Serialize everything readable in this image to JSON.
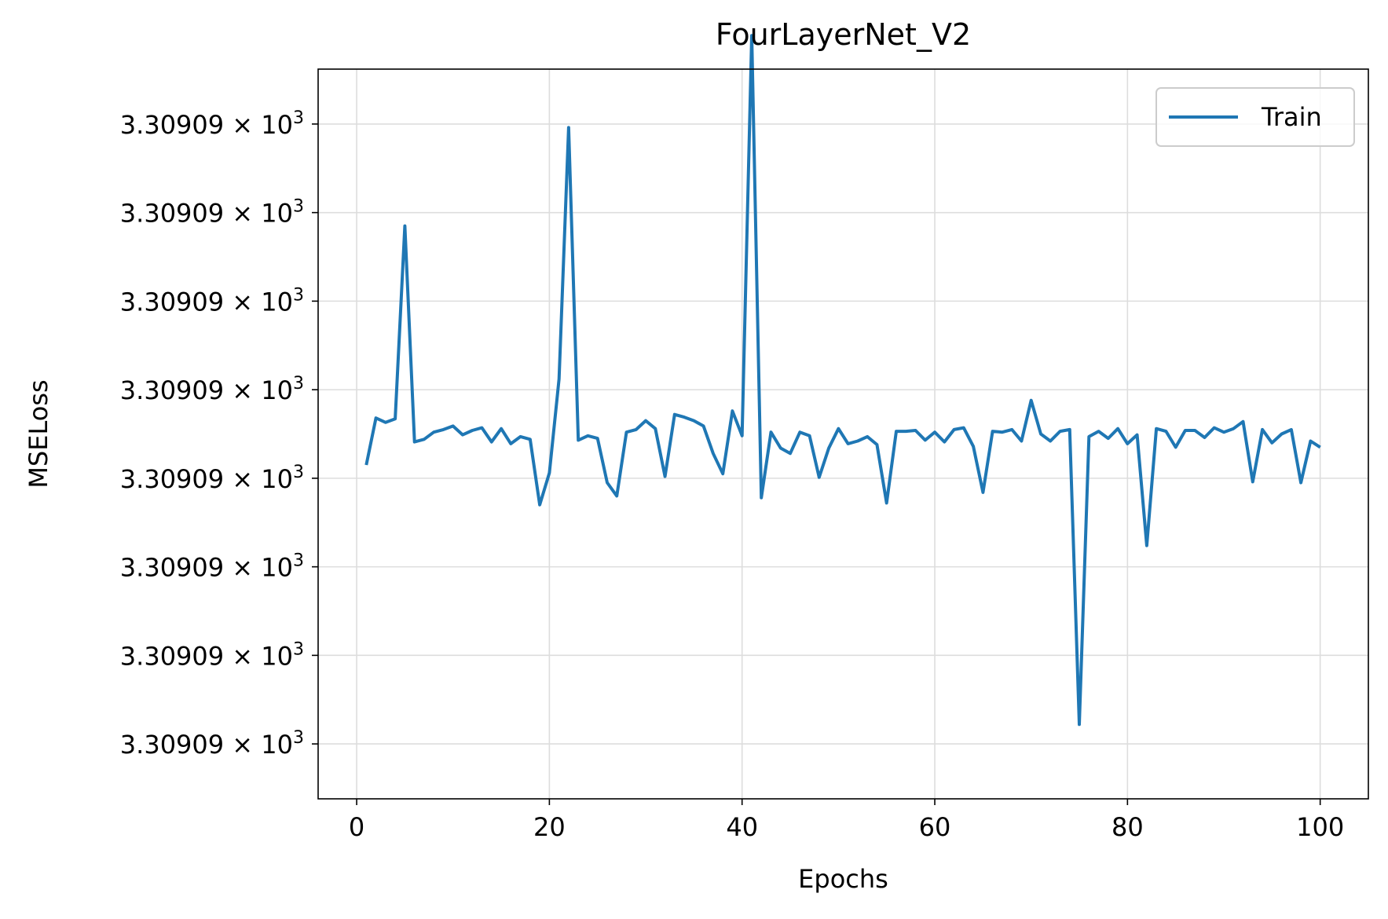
{
  "chart_data": {
    "type": "line",
    "title": "FourLayerNet_V2",
    "xlabel": "Epochs",
    "ylabel": "MSELoss",
    "xlim": [
      -4,
      105
    ],
    "ylim": [
      -0.62,
      7.62
    ],
    "x_ticks": [
      0,
      20,
      40,
      60,
      80,
      100
    ],
    "y_ticks": [
      0,
      1,
      2,
      3,
      4,
      5,
      6,
      7
    ],
    "y_tick_mantissa": "3.30909",
    "y_tick_multiplier": "× 10",
    "y_tick_exponent": "3",
    "grid": true,
    "legend_position": "top-right",
    "colors": {
      "series": "#1f77b4",
      "grid": "#dddddd",
      "axes": "#000000",
      "legend_border": "#cccccc"
    },
    "series": [
      {
        "name": "Train",
        "x": [
          1,
          2,
          3,
          4,
          5,
          6,
          7,
          8,
          9,
          10,
          11,
          12,
          13,
          14,
          15,
          16,
          17,
          18,
          19,
          20,
          21,
          22,
          23,
          24,
          25,
          26,
          27,
          28,
          29,
          30,
          31,
          32,
          33,
          34,
          35,
          36,
          37,
          38,
          39,
          40,
          41,
          42,
          43,
          44,
          45,
          46,
          47,
          48,
          49,
          50,
          51,
          52,
          53,
          54,
          55,
          56,
          57,
          58,
          59,
          60,
          61,
          62,
          63,
          64,
          65,
          66,
          67,
          68,
          69,
          70,
          71,
          72,
          73,
          74,
          75,
          76,
          77,
          78,
          79,
          80,
          81,
          82,
          83,
          84,
          85,
          86,
          87,
          88,
          89,
          90,
          91,
          92,
          93,
          94,
          95,
          96,
          97,
          98,
          99,
          100
        ],
        "y": [
          3.15,
          3.68,
          3.63,
          3.67,
          5.85,
          3.41,
          3.44,
          3.52,
          3.55,
          3.59,
          3.49,
          3.54,
          3.57,
          3.41,
          3.56,
          3.39,
          3.47,
          3.44,
          2.7,
          3.06,
          4.12,
          6.96,
          3.43,
          3.48,
          3.45,
          2.95,
          2.8,
          3.52,
          3.55,
          3.65,
          3.56,
          3.02,
          3.72,
          3.69,
          3.65,
          3.59,
          3.28,
          3.05,
          3.76,
          3.48,
          8.0,
          2.78,
          3.52,
          3.34,
          3.28,
          3.52,
          3.48,
          3.01,
          3.34,
          3.56,
          3.39,
          3.42,
          3.47,
          3.38,
          2.72,
          3.53,
          3.53,
          3.54,
          3.43,
          3.52,
          3.41,
          3.55,
          3.57,
          3.36,
          2.84,
          3.53,
          3.52,
          3.55,
          3.42,
          3.88,
          3.5,
          3.42,
          3.53,
          3.55,
          0.22,
          3.47,
          3.53,
          3.45,
          3.56,
          3.39,
          3.49,
          2.24,
          3.56,
          3.53,
          3.35,
          3.54,
          3.54,
          3.46,
          3.57,
          3.52,
          3.56,
          3.64,
          2.96,
          3.55,
          3.4,
          3.5,
          3.55,
          2.95,
          3.42,
          3.35
        ]
      }
    ]
  }
}
